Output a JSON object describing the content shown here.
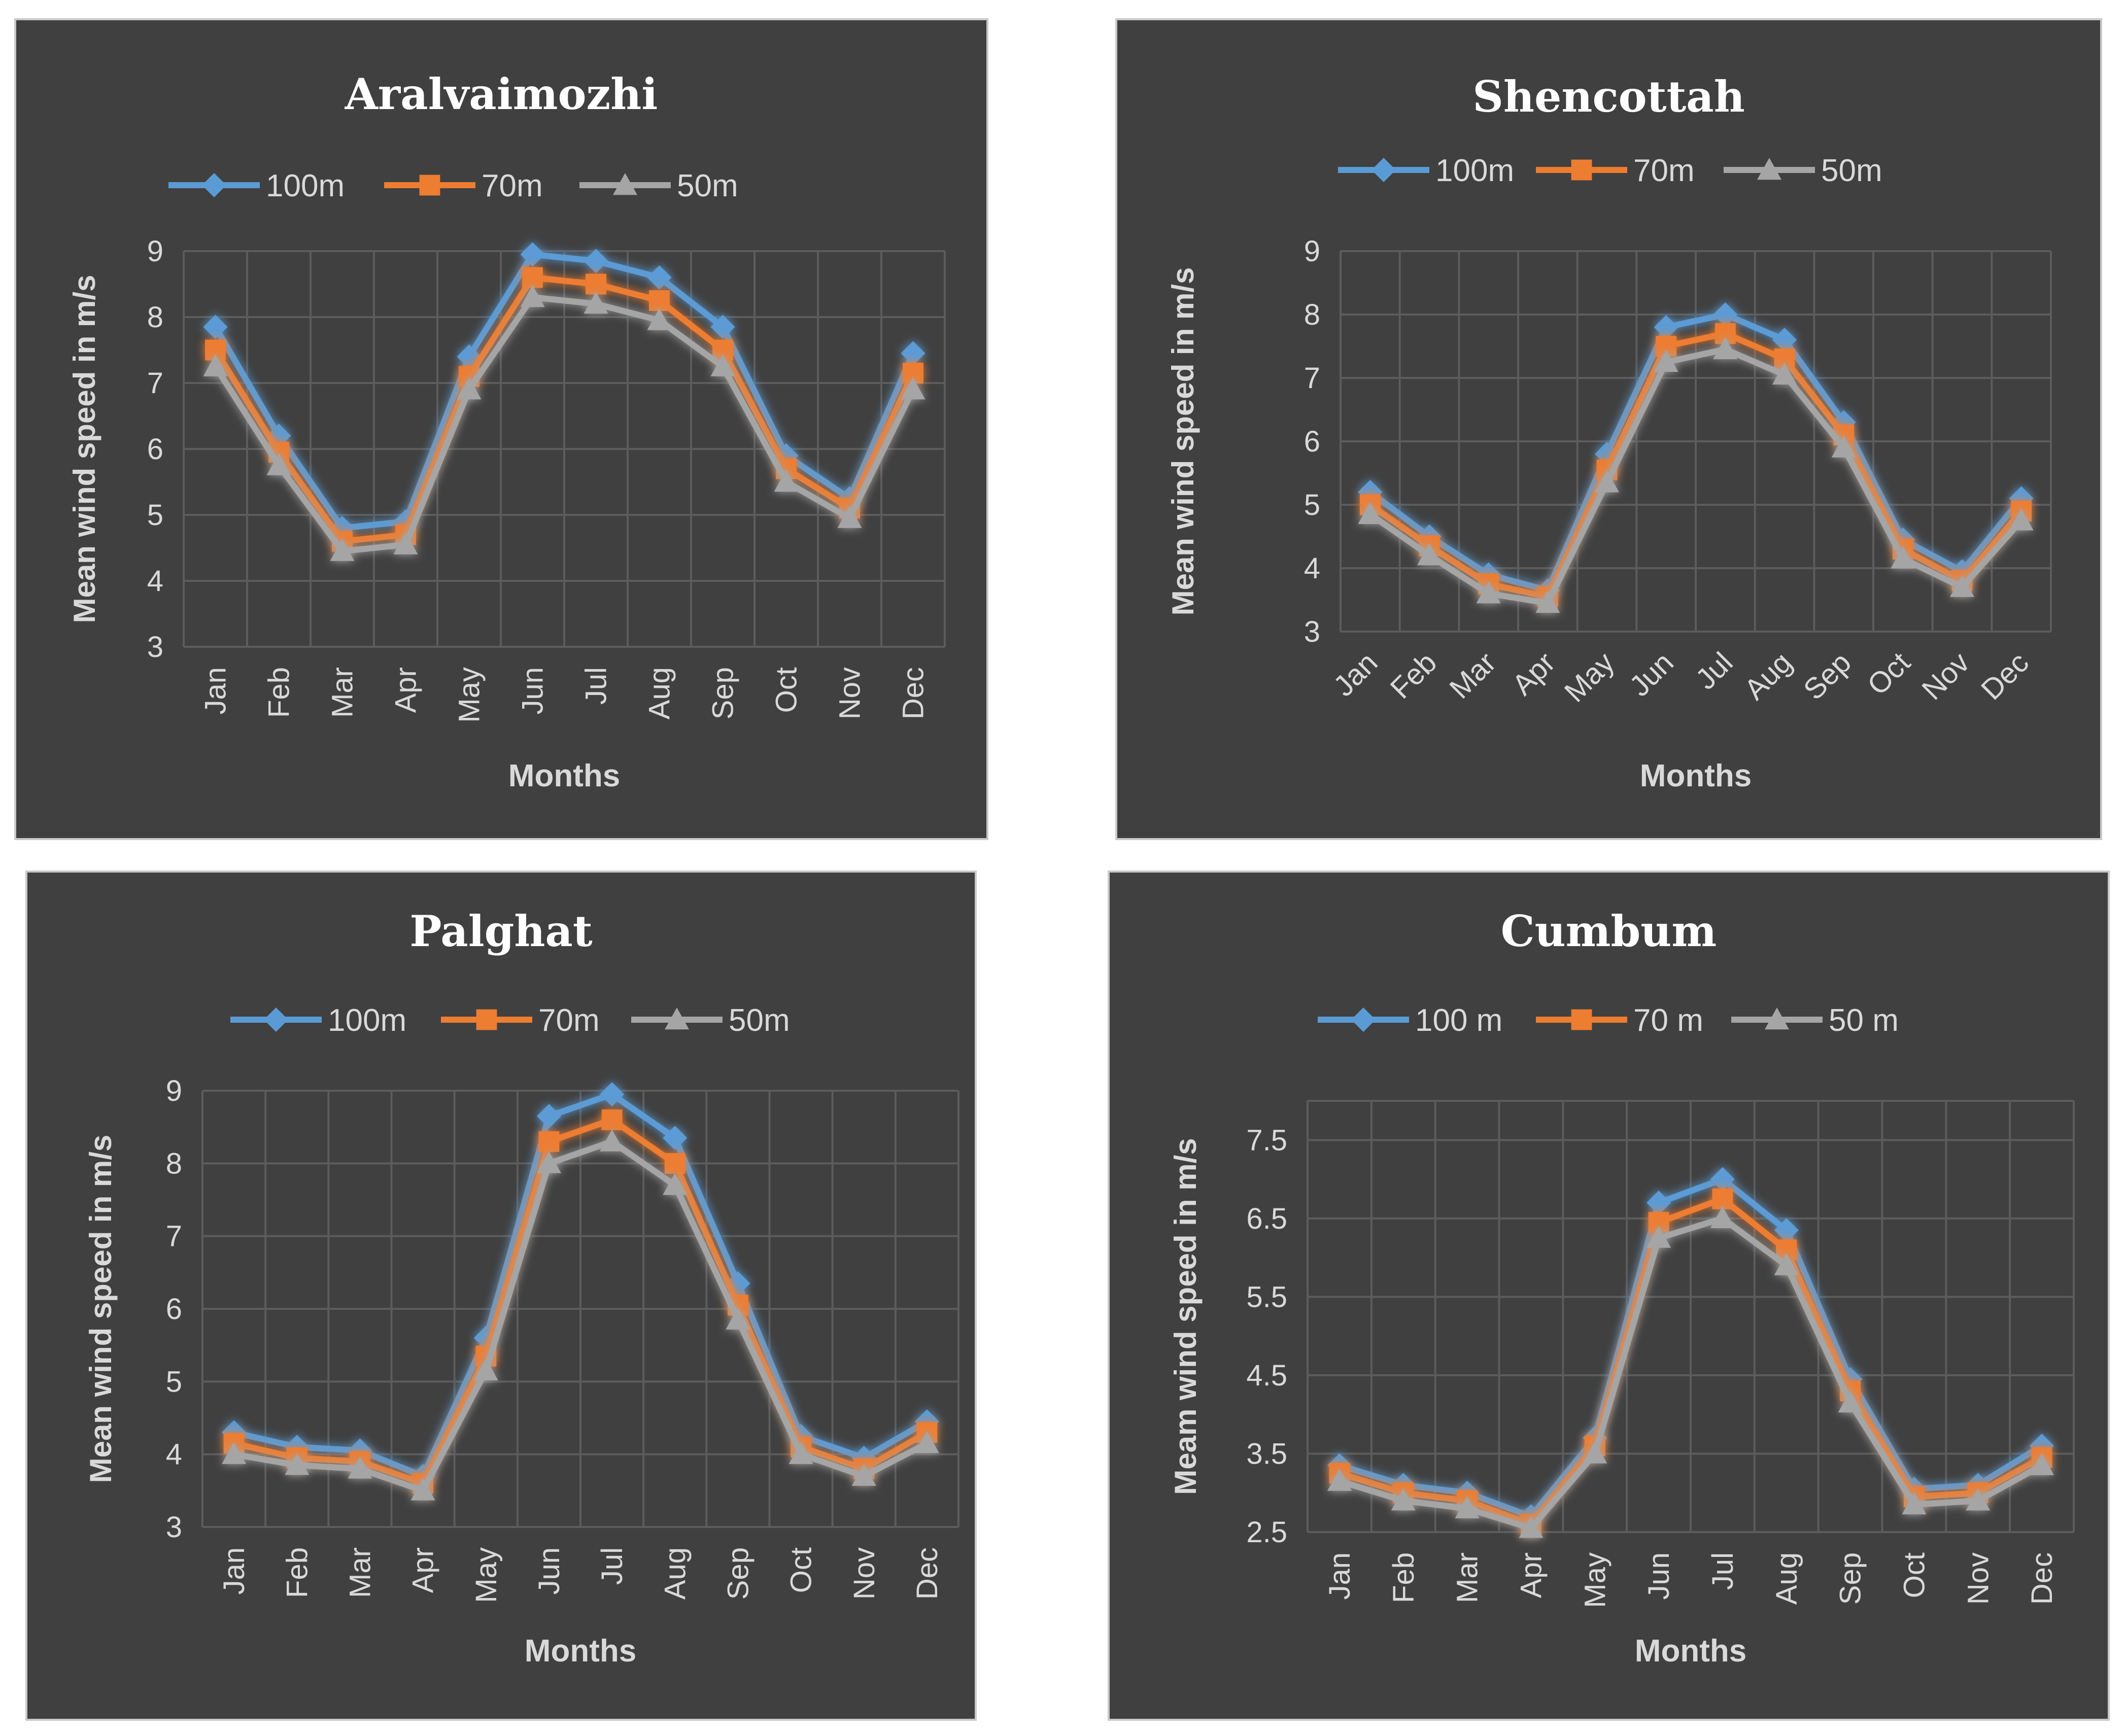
{
  "chart_data": [
    {
      "type": "line",
      "title": "Aralvaimozhi",
      "xlabel": "Months",
      "ylabel": "Mean wind speed in m/s",
      "ylim": [
        3,
        9
      ],
      "yticks": [
        3,
        4,
        5,
        6,
        7,
        8,
        9
      ],
      "tick_rotation": "vertical",
      "categories": [
        "Jan",
        "Feb",
        "Mar",
        "Apr",
        "May",
        "Jun",
        "Jul",
        "Aug",
        "Sep",
        "Oct",
        "Nov",
        "Dec"
      ],
      "series": [
        {
          "name": "100m",
          "color": "#5b9bd5",
          "marker": "diamond",
          "values": [
            7.85,
            6.2,
            4.8,
            4.9,
            7.4,
            8.95,
            8.85,
            8.6,
            7.85,
            5.9,
            5.25,
            7.45
          ]
        },
        {
          "name": "70m",
          "color": "#ed7d31",
          "marker": "square",
          "values": [
            7.5,
            5.95,
            4.6,
            4.7,
            7.1,
            8.6,
            8.5,
            8.25,
            7.5,
            5.7,
            5.1,
            7.15
          ]
        },
        {
          "name": "50m",
          "color": "#a5a5a5",
          "marker": "triangle",
          "values": [
            7.25,
            5.75,
            4.45,
            4.55,
            6.9,
            8.3,
            8.2,
            7.95,
            7.25,
            5.5,
            4.95,
            6.9
          ]
        }
      ]
    },
    {
      "type": "line",
      "title": "Shencottah",
      "xlabel": "Months",
      "ylabel": "Mean wind speed in m/s",
      "ylim": [
        3,
        9
      ],
      "yticks": [
        3,
        4,
        5,
        6,
        7,
        8,
        9
      ],
      "tick_rotation": "diagonal",
      "categories": [
        "Jan",
        "Feb",
        "Mar",
        "Apr",
        "May",
        "Jun",
        "Jul",
        "Aug",
        "Sep",
        "Oct",
        "Nov",
        "Dec"
      ],
      "series": [
        {
          "name": "100m",
          "color": "#5b9bd5",
          "marker": "diamond",
          "values": [
            5.2,
            4.5,
            3.9,
            3.65,
            5.8,
            7.8,
            8.0,
            7.6,
            6.3,
            4.45,
            3.95,
            5.1
          ]
        },
        {
          "name": "70m",
          "color": "#ed7d31",
          "marker": "square",
          "values": [
            5.0,
            4.35,
            3.75,
            3.55,
            5.55,
            7.5,
            7.7,
            7.3,
            6.1,
            4.3,
            3.8,
            4.9
          ]
        },
        {
          "name": "50m",
          "color": "#a5a5a5",
          "marker": "triangle",
          "values": [
            4.85,
            4.2,
            3.6,
            3.45,
            5.35,
            7.25,
            7.45,
            7.05,
            5.9,
            4.15,
            3.7,
            4.75
          ]
        }
      ]
    },
    {
      "type": "line",
      "title": "Palghat",
      "xlabel": "Months",
      "ylabel": "Mean wind speed in m/s",
      "ylim": [
        3,
        9
      ],
      "yticks": [
        3,
        4,
        5,
        6,
        7,
        8,
        9
      ],
      "tick_rotation": "vertical",
      "categories": [
        "Jan",
        "Feb",
        "Mar",
        "Apr",
        "May",
        "Jun",
        "Jul",
        "Aug",
        "Sep",
        "Oct",
        "Nov",
        "Dec"
      ],
      "series": [
        {
          "name": "100m",
          "color": "#5b9bd5",
          "marker": "diamond",
          "values": [
            4.3,
            4.1,
            4.05,
            3.7,
            5.6,
            8.65,
            8.95,
            8.35,
            6.35,
            4.25,
            3.95,
            4.45
          ]
        },
        {
          "name": "70m",
          "color": "#ed7d31",
          "marker": "square",
          "values": [
            4.15,
            3.95,
            3.9,
            3.6,
            5.35,
            8.3,
            8.6,
            8.0,
            6.05,
            4.1,
            3.8,
            4.3
          ]
        },
        {
          "name": "50m",
          "color": "#a5a5a5",
          "marker": "triangle",
          "values": [
            4.0,
            3.85,
            3.8,
            3.5,
            5.15,
            8.0,
            8.3,
            7.7,
            5.85,
            4.0,
            3.7,
            4.15
          ]
        }
      ]
    },
    {
      "type": "line",
      "title": "Cumbum",
      "xlabel": "Months",
      "ylabel": "Meam wind speed in m/s",
      "ylim": [
        2.5,
        8
      ],
      "yticks": [
        2.5,
        3.5,
        4.5,
        5.5,
        6.5,
        7.5
      ],
      "tick_rotation": "vertical",
      "categories": [
        "Jan",
        "Feb",
        "Mar",
        "Apr",
        "May",
        "Jun",
        "Jul",
        "Aug",
        "Sep",
        "Oct",
        "Nov",
        "Dec"
      ],
      "series": [
        {
          "name": "100 m",
          "color": "#5b9bd5",
          "marker": "diamond",
          "values": [
            3.35,
            3.1,
            3.0,
            2.7,
            3.7,
            6.7,
            7.0,
            6.35,
            4.45,
            3.05,
            3.1,
            3.6
          ]
        },
        {
          "name": "70 m",
          "color": "#ed7d31",
          "marker": "square",
          "values": [
            3.25,
            3.0,
            2.9,
            2.6,
            3.6,
            6.45,
            6.75,
            6.1,
            4.3,
            2.95,
            3.0,
            3.45
          ]
        },
        {
          "name": "50 m",
          "color": "#a5a5a5",
          "marker": "triangle",
          "values": [
            3.15,
            2.9,
            2.8,
            2.55,
            3.5,
            6.25,
            6.5,
            5.9,
            4.15,
            2.85,
            2.9,
            3.35
          ]
        }
      ]
    }
  ]
}
